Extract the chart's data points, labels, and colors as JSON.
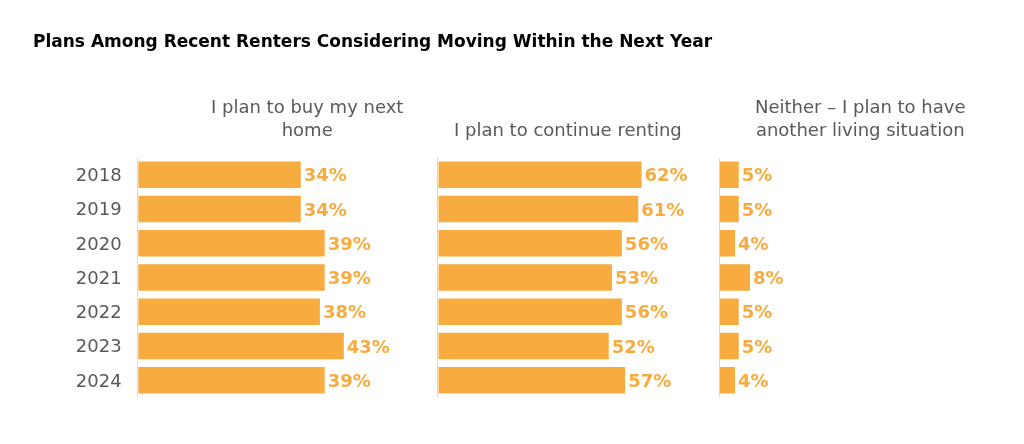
{
  "chart_data": [
    {
      "type": "bar",
      "orientation": "horizontal",
      "title": "Plans Among Recent Renters Considering Moving Within the Next Year",
      "subtitle": "I plan to buy my next home",
      "categories": [
        "2018",
        "2019",
        "2020",
        "2021",
        "2022",
        "2023",
        "2024"
      ],
      "values": [
        34,
        34,
        39,
        39,
        38,
        43,
        39
      ],
      "value_labels": [
        "34%",
        "34%",
        "39%",
        "39%",
        "38%",
        "43%",
        "39%"
      ],
      "color": "#f8ab3e",
      "tick_labels": "y"
    },
    {
      "type": "bar",
      "orientation": "horizontal",
      "subtitle": "I plan to continue renting",
      "categories": [
        "2018",
        "2019",
        "2020",
        "2021",
        "2022",
        "2023",
        "2024"
      ],
      "values": [
        62,
        61,
        56,
        53,
        56,
        52,
        57
      ],
      "value_labels": [
        "62%",
        "61%",
        "56%",
        "53%",
        "56%",
        "52%",
        "57%"
      ],
      "color": "#f8ab3e",
      "tick_labels": false
    },
    {
      "type": "bar",
      "orientation": "horizontal",
      "subtitle": "Neither – I plan to have another living situation",
      "categories": [
        "2018",
        "2019",
        "2020",
        "2021",
        "2022",
        "2023",
        "2024"
      ],
      "values": [
        5,
        5,
        4,
        8,
        5,
        5,
        4
      ],
      "value_labels": [
        "5%",
        "5%",
        "4%",
        "8%",
        "5%",
        "5%",
        "4%"
      ],
      "color": "#f8ab3e",
      "tick_labels": false
    }
  ]
}
